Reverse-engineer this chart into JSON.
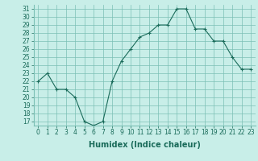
{
  "x": [
    0,
    1,
    2,
    3,
    4,
    5,
    6,
    7,
    8,
    9,
    10,
    11,
    12,
    13,
    14,
    15,
    16,
    17,
    18,
    19,
    20,
    21,
    22,
    23
  ],
  "y": [
    22,
    23,
    21,
    21,
    20,
    17,
    16.5,
    17,
    22,
    24.5,
    26,
    27.5,
    28,
    29,
    29,
    31,
    31,
    28.5,
    28.5,
    27,
    27,
    25,
    23.5,
    23.5
  ],
  "line_color": "#1a6b5a",
  "marker_color": "#1a6b5a",
  "bg_color": "#c8eee8",
  "grid_color": "#7bbfb5",
  "xlabel": "Humidex (Indice chaleur)",
  "ylabel": "",
  "ylim": [
    16.5,
    31.5
  ],
  "xlim": [
    -0.5,
    23.5
  ],
  "yticks": [
    17,
    18,
    19,
    20,
    21,
    22,
    23,
    24,
    25,
    26,
    27,
    28,
    29,
    30,
    31
  ],
  "xticks": [
    0,
    1,
    2,
    3,
    4,
    5,
    6,
    7,
    8,
    9,
    10,
    11,
    12,
    13,
    14,
    15,
    16,
    17,
    18,
    19,
    20,
    21,
    22,
    23
  ],
  "tick_fontsize": 5.5,
  "label_fontsize": 7
}
